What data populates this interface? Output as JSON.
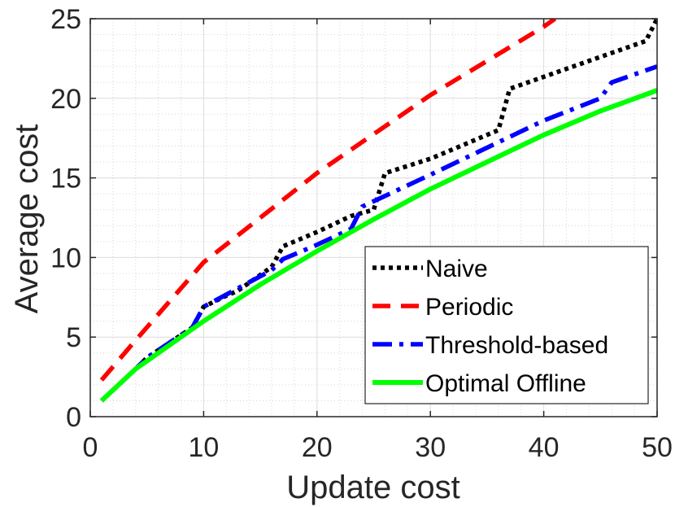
{
  "chart_data": {
    "type": "line",
    "title": "",
    "xlabel": "Update cost",
    "ylabel": "Average cost",
    "xlim": [
      0,
      50
    ],
    "ylim": [
      0,
      25
    ],
    "xticks": [
      0,
      10,
      20,
      30,
      40,
      50
    ],
    "yticks": [
      0,
      5,
      10,
      15,
      20,
      25
    ],
    "grid": true,
    "minor_grid": true,
    "legend_position": "bottom-right",
    "series": [
      {
        "name": "Naive",
        "color": "#000000",
        "style": "dotted",
        "x": [
          1,
          4,
          5,
          9,
          10,
          12,
          13,
          16,
          17,
          20,
          23,
          25,
          26,
          30,
          36,
          37,
          45,
          49,
          50
        ],
        "y": [
          1.0,
          3.0,
          3.7,
          5.6,
          6.9,
          7.6,
          7.9,
          9.4,
          10.7,
          11.6,
          12.6,
          13.0,
          15.3,
          16.2,
          18.0,
          20.6,
          22.6,
          23.6,
          25.0
        ]
      },
      {
        "name": "Periodic",
        "color": "#ff0000",
        "style": "dashed",
        "x": [
          1,
          4,
          10,
          20,
          30,
          40,
          41
        ],
        "y": [
          2.3,
          4.8,
          9.7,
          15.3,
          20.2,
          24.5,
          25.0
        ]
      },
      {
        "name": "Threshold-based",
        "color": "#0000ff",
        "style": "dashdot",
        "x": [
          1,
          4,
          5,
          9,
          10,
          16,
          17,
          20,
          23,
          24,
          30,
          40,
          45,
          46,
          50
        ],
        "y": [
          1.0,
          3.0,
          3.7,
          5.6,
          6.9,
          9.2,
          9.9,
          10.8,
          11.8,
          13.2,
          15.2,
          18.6,
          20.0,
          21.0,
          22.0
        ]
      },
      {
        "name": "Optimal Offline",
        "color": "#00ff00",
        "style": "solid",
        "x": [
          1,
          4,
          10,
          15,
          20,
          25,
          30,
          35,
          40,
          45,
          50
        ],
        "y": [
          1.0,
          3.0,
          6.0,
          8.3,
          10.4,
          12.4,
          14.3,
          16.0,
          17.7,
          19.2,
          20.5
        ]
      }
    ]
  }
}
